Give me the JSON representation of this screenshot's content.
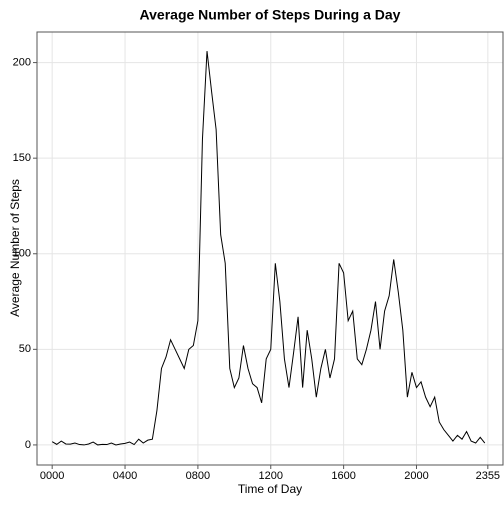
{
  "chart_data": {
    "type": "line",
    "title": "Average Number of Steps During a Day",
    "x_label": "Time of Day",
    "y_label": "Average Number of Steps",
    "x": [
      0,
      15,
      30,
      45,
      60,
      75,
      90,
      105,
      120,
      135,
      150,
      165,
      180,
      195,
      210,
      225,
      240,
      255,
      270,
      285,
      300,
      315,
      330,
      345,
      360,
      375,
      390,
      405,
      420,
      435,
      450,
      465,
      480,
      495,
      510,
      525,
      540,
      555,
      570,
      585,
      600,
      615,
      630,
      645,
      660,
      675,
      690,
      705,
      720,
      735,
      750,
      765,
      780,
      795,
      810,
      825,
      840,
      855,
      870,
      885,
      900,
      915,
      930,
      945,
      960,
      975,
      990,
      1005,
      1020,
      1035,
      1050,
      1065,
      1080,
      1095,
      1110,
      1125,
      1140,
      1155,
      1170,
      1185,
      1200,
      1215,
      1230,
      1245,
      1260,
      1275,
      1290,
      1305,
      1320,
      1335,
      1350,
      1365,
      1380,
      1395,
      1410,
      1425
    ],
    "series": [
      {
        "name": "steps",
        "color": "#000000",
        "values": [
          1.7,
          0.3,
          2,
          0.5,
          0.4,
          1,
          0.2,
          0,
          0.5,
          1.5,
          0,
          0.3,
          0.2,
          1,
          0,
          0.5,
          0.8,
          1.5,
          0.2,
          3,
          1,
          2.5,
          3,
          18,
          40,
          46,
          55,
          50,
          45,
          40,
          50,
          52,
          65,
          160,
          206,
          185,
          165,
          110,
          95,
          40,
          30,
          35,
          52,
          40,
          32,
          30,
          22,
          45,
          50,
          95,
          75,
          45,
          30,
          48,
          67,
          30,
          60,
          45,
          25,
          40,
          50,
          35,
          45,
          95,
          90,
          65,
          70,
          45,
          42,
          50,
          60,
          75,
          50,
          70,
          78,
          97,
          80,
          60,
          25,
          38,
          30,
          33,
          25,
          20,
          25,
          12,
          8,
          5,
          2,
          5,
          3,
          7,
          2,
          1,
          4,
          1
        ]
      }
    ],
    "xlim": [
      -50,
      1485
    ],
    "ylim": [
      -10.5,
      216
    ],
    "xticks": [
      {
        "value": 0,
        "label": "0000"
      },
      {
        "value": 240,
        "label": "0400"
      },
      {
        "value": 480,
        "label": "0800"
      },
      {
        "value": 720,
        "label": "1200"
      },
      {
        "value": 960,
        "label": "1600"
      },
      {
        "value": 1200,
        "label": "2000"
      },
      {
        "value": 1435,
        "label": "2355"
      }
    ],
    "yticks": [
      0,
      50,
      100,
      150,
      200
    ],
    "grid": true
  }
}
